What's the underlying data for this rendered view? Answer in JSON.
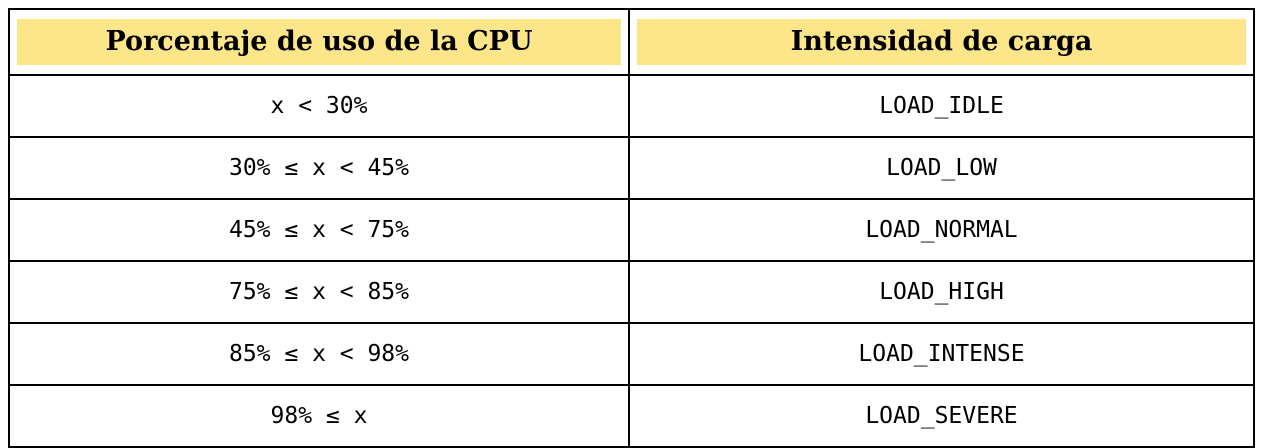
{
  "table": {
    "headers": [
      "Porcentaje de uso de la CPU",
      "Intensidad de carga"
    ],
    "rows": [
      {
        "range": "x < 30%",
        "level": "LOAD_IDLE"
      },
      {
        "range": "30% ≤ x < 45%",
        "level": "LOAD_LOW"
      },
      {
        "range": "45% ≤ x < 75%",
        "level": "LOAD_NORMAL"
      },
      {
        "range": "75% ≤ x < 85%",
        "level": "LOAD_HIGH"
      },
      {
        "range": "85% ≤ x < 98%",
        "level": "LOAD_INTENSE"
      },
      {
        "range": "98% ≤ x",
        "level": "LOAD_SEVERE"
      }
    ],
    "header_fill_color": "#fde68a"
  }
}
